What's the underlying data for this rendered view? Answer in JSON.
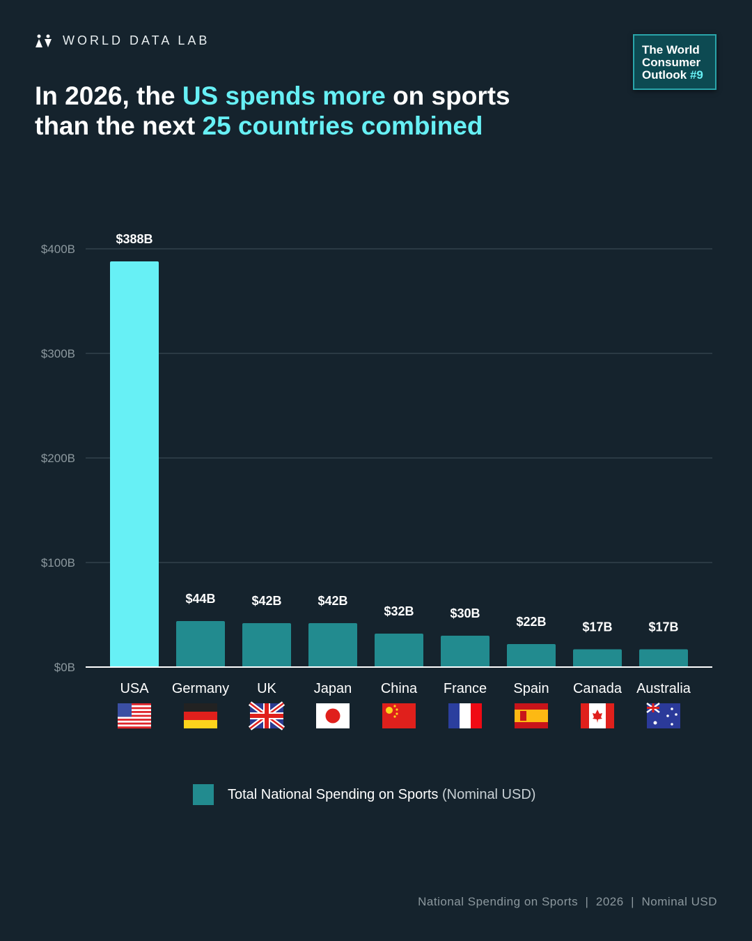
{
  "brand": {
    "name": "WORLD DATA LAB",
    "icon": "people-logo-icon"
  },
  "badge": {
    "line1": "The World",
    "line2": "Consumer",
    "line3": "Outlook",
    "issue": "#9"
  },
  "headline": {
    "p1": "In 2026, the ",
    "h1": "US spends more",
    "p2": " on sports",
    "p3": "than the next ",
    "h2": "25 countries combined"
  },
  "colors": {
    "background": "#15232d",
    "highlight": "#67f0f5",
    "usa_bar": "#67f0f5",
    "bar": "#228b8f",
    "grid": "#33434c"
  },
  "chart_data": {
    "type": "bar",
    "title": "In 2026, the US spends more on sports than the next 25 countries combined",
    "categories": [
      "USA",
      "Germany",
      "UK",
      "Japan",
      "China",
      "France",
      "Spain",
      "Canada",
      "Australia"
    ],
    "flags": [
      "us-flag-icon",
      "germany-flag-icon",
      "uk-flag-icon",
      "japan-flag-icon",
      "china-flag-icon",
      "france-flag-icon",
      "spain-flag-icon",
      "canada-flag-icon",
      "australia-flag-icon"
    ],
    "values": [
      388,
      44,
      42,
      42,
      32,
      30,
      22,
      17,
      17
    ],
    "data_labels": [
      "$388B",
      "$44B",
      "$42B",
      "$42B",
      "$32B",
      "$30B",
      "$22B",
      "$17B",
      "$17B"
    ],
    "ylim": [
      0,
      400
    ],
    "yticks": [
      0,
      100,
      200,
      300,
      400
    ],
    "ytick_labels": [
      "$0B",
      "$100B",
      "$200B",
      "$300B",
      "$400B"
    ],
    "ylabel": "",
    "xlabel": "",
    "grid": true,
    "legend": {
      "label": "Total National Spending on Sports",
      "sub": "(Nominal USD)",
      "placement": "bottom-center"
    }
  },
  "footer": "National Spending on Sports  |  2026  |  Nominal USD"
}
